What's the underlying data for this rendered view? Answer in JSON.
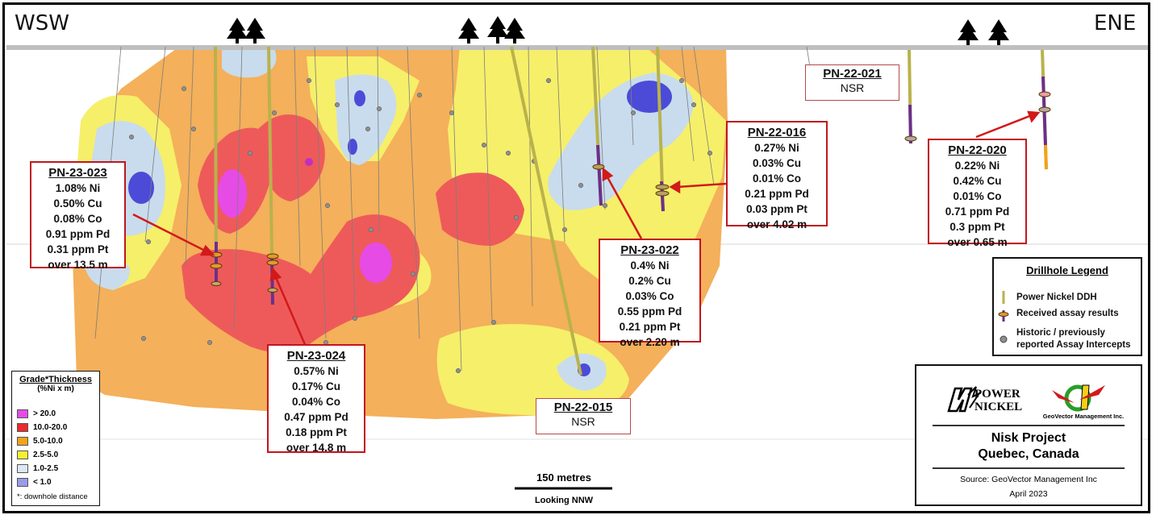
{
  "orientation": {
    "left": "WSW",
    "right": "ENE"
  },
  "colors": {
    "grade_gt20": "#e64be6",
    "grade_10_20": "#ee5a5a",
    "grade_5_10": "#f4b05a",
    "grade_2_5_5": "#f6ef6a",
    "grade_1_2_5": "#c8dced",
    "grade_lt1": "#4b4bd8",
    "callout_border": "#c0161f"
  },
  "callouts": [
    {
      "id": "PN-23-023",
      "lines": [
        "1.08% Ni",
        "0.50% Cu",
        "0.08% Co",
        "0.91 ppm Pd",
        "0.31 ppm Pt",
        "over 13.5 m"
      ]
    },
    {
      "id": "PN-23-024",
      "lines": [
        "0.57% Ni",
        "0.17% Cu",
        "0.04% Co",
        "0.47 ppm Pd",
        "0.18 ppm Pt",
        "over 14.8 m"
      ]
    },
    {
      "id": "PN-22-016",
      "lines": [
        "0.27% Ni",
        "0.03% Cu",
        "0.01% Co",
        "0.21 ppm Pd",
        "0.03 ppm Pt",
        "over 4.02 m"
      ]
    },
    {
      "id": "PN-23-022",
      "lines": [
        "0.4% Ni",
        "0.2% Cu",
        "0.03% Co",
        "0.55 ppm Pd",
        "0.21 ppm Pt",
        "over 2.20 m"
      ]
    },
    {
      "id": "PN-22-020",
      "lines": [
        "0.22% Ni",
        "0.42% Cu",
        "0.01% Co",
        "0.71 ppm Pd",
        "0.3 ppm Pt",
        "over 0.65 m"
      ]
    },
    {
      "id": "PN-22-021",
      "lines": [
        "NSR"
      ]
    },
    {
      "id": "PN-22-015",
      "lines": [
        "NSR"
      ]
    }
  ],
  "drillhole_legend": {
    "title": "Drillhole Legend",
    "items": [
      "Power Nickel DDH",
      "Received assay results",
      "Historic / previously reported Assay Intercepts"
    ]
  },
  "grade_legend": {
    "title": "Grade*Thickness",
    "subtitle": "(%Ni  x m)",
    "items": [
      "> 20.0",
      "10.0-20.0",
      "5.0-10.0",
      "2.5-5.0",
      "1.0-2.5",
      "< 1.0"
    ],
    "footnote": "*: downhole distance"
  },
  "scale": {
    "label": "150 metres",
    "view": "Looking NNW"
  },
  "title_block": {
    "logo_power_nickel": "POWER NICKEL",
    "logo_geovector": "GeoVector Management Inc.",
    "project": "Nisk Project",
    "location": "Quebec, Canada",
    "source": "Source: GeoVector Management Inc",
    "date": "April 2023"
  }
}
